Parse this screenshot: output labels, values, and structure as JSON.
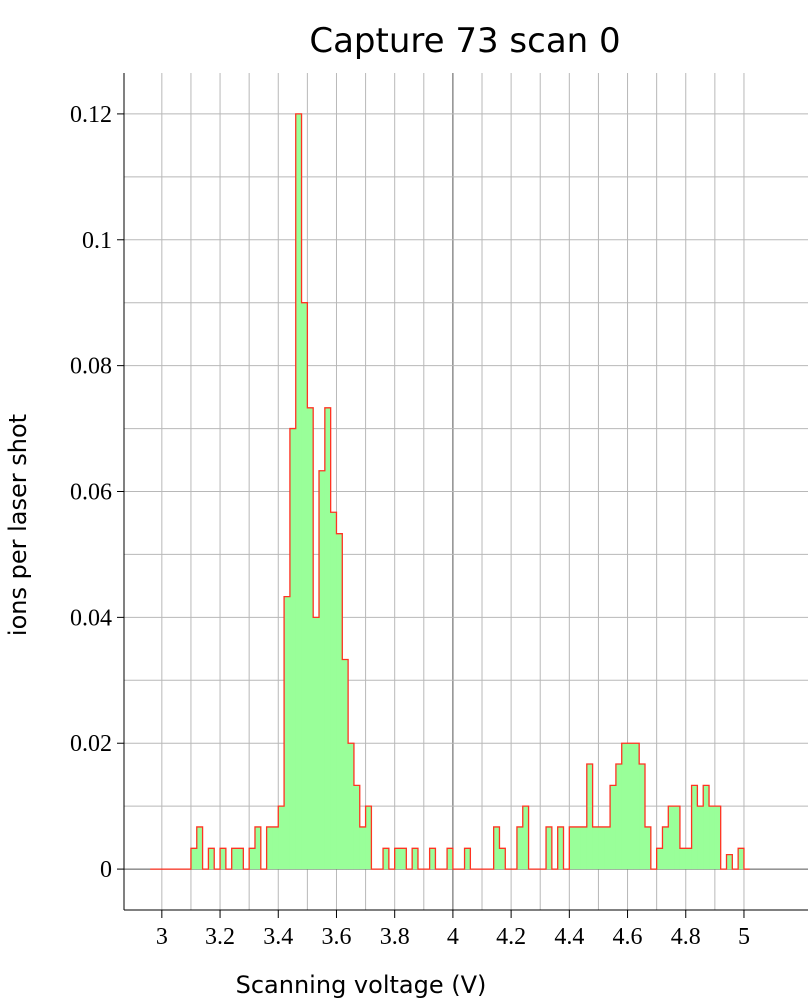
{
  "chart_data": {
    "type": "area",
    "title": "Capture 73 scan 0",
    "xlabel": "Scanning voltage (V)",
    "ylabel": "ions per laser shot",
    "xlim": [
      2.87,
      5.22
    ],
    "ylim": [
      -0.0065,
      0.1265
    ],
    "xticks": [
      3,
      3.2,
      3.4,
      3.6,
      3.8,
      4,
      4.2,
      4.4,
      4.6,
      4.8,
      5
    ],
    "xtick_labels": [
      "3",
      "3.2",
      "3.4",
      "3.6",
      "3.8",
      "4",
      "4.2",
      "4.4",
      "4.6",
      "4.8",
      "5"
    ],
    "yticks": [
      0,
      0.02,
      0.04,
      0.06,
      0.08,
      0.1,
      0.12
    ],
    "ytick_labels": [
      "0",
      "0.02",
      "0.04",
      "0.06",
      "0.08",
      "0.1",
      "0.12"
    ],
    "grid": true,
    "legend": "none",
    "series": [
      {
        "bin_width": 0.02,
        "x_start": 2.96,
        "values": [
          0,
          0,
          0,
          0,
          0,
          0,
          0,
          0.0033,
          0.0067,
          0,
          0.0033,
          0,
          0.0033,
          0,
          0.0033,
          0.0033,
          0,
          0.0033,
          0.0067,
          0,
          0.0067,
          0.0067,
          0.01,
          0.0433,
          0.07,
          0.12,
          0.09,
          0.0733,
          0.04,
          0.0633,
          0.0733,
          0.0567,
          0.0533,
          0.0333,
          0.02,
          0.0133,
          0.0067,
          0.01,
          0,
          0,
          0.0033,
          0,
          0.0033,
          0.0033,
          0,
          0.0033,
          0,
          0,
          0.0033,
          0,
          0,
          0.0033,
          0,
          0,
          0.0033,
          0,
          0,
          0,
          0,
          0.0067,
          0.0033,
          0,
          0,
          0.0067,
          0.01,
          0,
          0,
          0,
          0.0067,
          0,
          0.0067,
          0,
          0.0067,
          0.0067,
          0.0067,
          0.0167,
          0.0067,
          0.0067,
          0.0067,
          0.0133,
          0.0167,
          0.02,
          0.02,
          0.02,
          0.0167,
          0.0067,
          0,
          0.0033,
          0.0067,
          0.01,
          0.01,
          0.0033,
          0.0033,
          0.0133,
          0.01,
          0.0133,
          0.01,
          0.01,
          0,
          0.0023,
          0,
          0.0033,
          0
        ]
      }
    ]
  },
  "colors": {
    "fill": "#99ff99",
    "outline": "#ff3322",
    "background": "#ffffff"
  }
}
